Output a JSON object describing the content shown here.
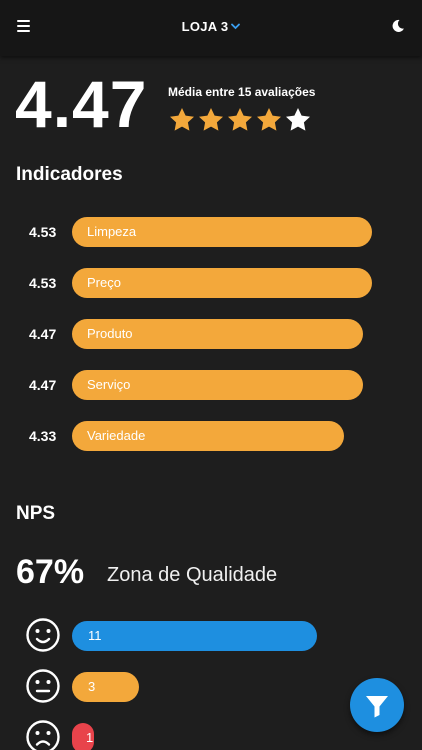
{
  "header": {
    "store_label": "LOJA 3",
    "menu_icon": "hamburger-menu-icon",
    "dropdown_icon": "chevron-down-icon",
    "theme_icon": "moon-icon"
  },
  "summary": {
    "average": "4.47",
    "caption": "Média entre 15 avaliações",
    "rating": 4.47,
    "stars_total": 5
  },
  "indicators": {
    "title": "Indicadores",
    "items": [
      {
        "value": "4.53",
        "label": "Limpeza",
        "score": 4.53
      },
      {
        "value": "4.53",
        "label": "Preço",
        "score": 4.53
      },
      {
        "value": "4.47",
        "label": "Produto",
        "score": 4.47
      },
      {
        "value": "4.47",
        "label": "Serviço",
        "score": 4.47
      },
      {
        "value": "4.33",
        "label": "Variedade",
        "score": 4.33
      }
    ]
  },
  "nps": {
    "title": "NPS",
    "percent": "67%",
    "zone": "Zona de Qualidade",
    "rows": [
      {
        "face": "happy-face-icon",
        "count": "11",
        "color": "#1e8fe0"
      },
      {
        "face": "neutral-face-icon",
        "count": "3",
        "color": "#f3a83b"
      },
      {
        "face": "sad-face-icon",
        "count": "1",
        "color": "#e8434b"
      }
    ]
  },
  "colors": {
    "accent_orange": "#f3a83b",
    "accent_blue": "#1e8fe0",
    "accent_red": "#e8434b",
    "background": "#1e1e1e"
  },
  "fab": {
    "icon": "filter-icon"
  }
}
